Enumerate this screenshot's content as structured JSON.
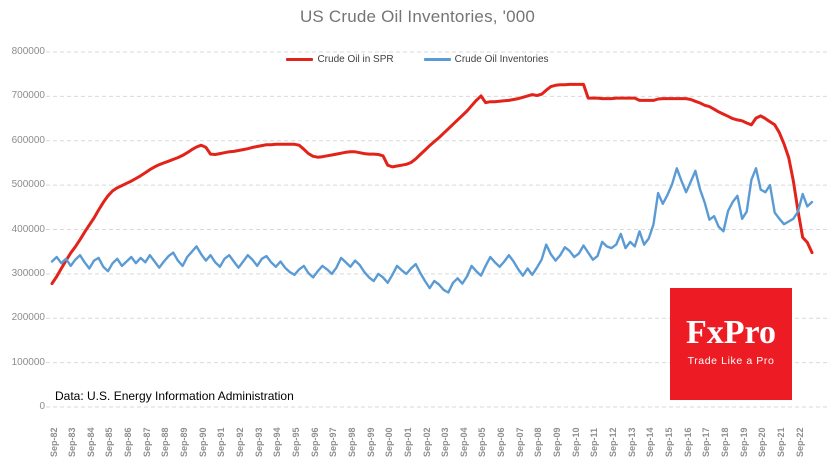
{
  "title": "US Crude Oil Inventories, '000",
  "source_note": "Data: U.S. Energy Information Administration",
  "logo": {
    "brand": "FxPro",
    "tagline": "Trade Like a Pro",
    "bg_color": "#ed1c24",
    "text_color": "#ffffff"
  },
  "legend": [
    {
      "label": "Crude Oil in SPR",
      "color": "#e2231a"
    },
    {
      "label": "Crude Oil Inventories",
      "color": "#5b9bd5"
    }
  ],
  "colors": {
    "gridline": "#d9d9d9",
    "axis_text": "#8c8c8c",
    "title_text": "#757575"
  },
  "chart_data": {
    "type": "line",
    "title": "US Crude Oil Inventories, '000",
    "xlabel": "",
    "ylabel": "",
    "ylim": [
      0,
      800000
    ],
    "y_ticks": [
      0,
      100000,
      200000,
      300000,
      400000,
      500000,
      600000,
      700000,
      800000
    ],
    "grid": "horizontal-dashed",
    "legend_position": "top-center",
    "x_start": "Sep-1982",
    "x_end": "mid-2023",
    "x_step_years": 0.25,
    "x_tick_labels": [
      "Sep-82",
      "Sep-83",
      "Sep-84",
      "Sep-85",
      "Sep-86",
      "Sep-87",
      "Sep-88",
      "Sep-89",
      "Sep-90",
      "Sep-91",
      "Sep-92",
      "Sep-93",
      "Sep-94",
      "Sep-95",
      "Sep-96",
      "Sep-97",
      "Sep-98",
      "Sep-99",
      "Sep-00",
      "Sep-01",
      "Sep-02",
      "Sep-03",
      "Sep-04",
      "Sep-05",
      "Sep-06",
      "Sep-07",
      "Sep-08",
      "Sep-09",
      "Sep-10",
      "Sep-11",
      "Sep-12",
      "Sep-13",
      "Sep-14",
      "Sep-15",
      "Sep-16",
      "Sep-17",
      "Sep-18",
      "Sep-19",
      "Sep-20",
      "Sep-21",
      "Sep-22"
    ],
    "x_ticks_every_n_points": 4,
    "series": [
      {
        "name": "Crude Oil in SPR",
        "color": "#e2231a",
        "stroke_width": 3,
        "values": [
          278000,
          294000,
          312000,
          330000,
          347000,
          361000,
          377000,
          394000,
          410000,
          426000,
          444000,
          461000,
          476000,
          487000,
          494000,
          499000,
          504000,
          509000,
          515000,
          521000,
          528000,
          535000,
          541000,
          546000,
          550000,
          554000,
          558000,
          562000,
          567000,
          573000,
          580000,
          586000,
          590000,
          585000,
          570000,
          569000,
          571000,
          573000,
          575000,
          576000,
          578000,
          580000,
          582000,
          585000,
          587000,
          589000,
          591000,
          591000,
          592000,
          592000,
          592000,
          592000,
          592000,
          590000,
          581000,
          571000,
          565000,
          563000,
          564000,
          566000,
          568000,
          570000,
          572000,
          574000,
          575000,
          575000,
          573000,
          571000,
          570000,
          570000,
          569000,
          566000,
          545000,
          541000,
          543000,
          545000,
          547000,
          551000,
          559000,
          569000,
          579000,
          589000,
          598000,
          607000,
          617000,
          627000,
          637000,
          647000,
          657000,
          667000,
          679000,
          691000,
          701000,
          686000,
          688000,
          688000,
          689000,
          690000,
          691000,
          693000,
          695000,
          698000,
          701000,
          704000,
          702000,
          705000,
          714000,
          722000,
          725000,
          726000,
          726000,
          727000,
          727000,
          727000,
          727000,
          696000,
          696000,
          696000,
          695000,
          695000,
          695000,
          696000,
          696000,
          696000,
          696000,
          696000,
          691000,
          691000,
          691000,
          691000,
          694000,
          695000,
          695000,
          695000,
          695000,
          695000,
          695000,
          693000,
          689000,
          685000,
          680000,
          677000,
          671000,
          665000,
          660000,
          655000,
          650000,
          647000,
          645000,
          640000,
          636000,
          651000,
          656000,
          650000,
          643000,
          636000,
          618000,
          593000,
          562000,
          510000,
          442000,
          382000,
          371000,
          348000
        ]
      },
      {
        "name": "Crude Oil Inventories",
        "color": "#5b9bd5",
        "stroke_width": 2.4,
        "values": [
          328000,
          338000,
          324000,
          334000,
          318000,
          332000,
          342000,
          326000,
          312000,
          330000,
          336000,
          316000,
          306000,
          324000,
          334000,
          318000,
          328000,
          338000,
          324000,
          336000,
          326000,
          342000,
          328000,
          314000,
          328000,
          340000,
          348000,
          330000,
          318000,
          338000,
          350000,
          362000,
          344000,
          330000,
          342000,
          326000,
          316000,
          334000,
          342000,
          328000,
          314000,
          328000,
          342000,
          332000,
          318000,
          334000,
          340000,
          326000,
          316000,
          328000,
          314000,
          304000,
          298000,
          310000,
          318000,
          302000,
          292000,
          306000,
          318000,
          310000,
          300000,
          314000,
          336000,
          326000,
          316000,
          330000,
          320000,
          304000,
          292000,
          284000,
          300000,
          292000,
          280000,
          298000,
          318000,
          308000,
          300000,
          312000,
          322000,
          302000,
          284000,
          268000,
          284000,
          276000,
          264000,
          258000,
          280000,
          290000,
          278000,
          294000,
          318000,
          306000,
          296000,
          318000,
          338000,
          326000,
          316000,
          328000,
          342000,
          328000,
          310000,
          296000,
          312000,
          298000,
          314000,
          332000,
          366000,
          344000,
          330000,
          342000,
          360000,
          352000,
          338000,
          346000,
          364000,
          348000,
          332000,
          340000,
          372000,
          362000,
          358000,
          366000,
          390000,
          358000,
          372000,
          362000,
          396000,
          366000,
          380000,
          412000,
          482000,
          458000,
          478000,
          502000,
          538000,
          510000,
          484000,
          508000,
          532000,
          490000,
          460000,
          422000,
          430000,
          406000,
          396000,
          442000,
          462000,
          476000,
          424000,
          440000,
          512000,
          538000,
          490000,
          484000,
          500000,
          438000,
          424000,
          412000,
          418000,
          424000,
          440000,
          480000,
          452000,
          462000
        ]
      }
    ]
  }
}
